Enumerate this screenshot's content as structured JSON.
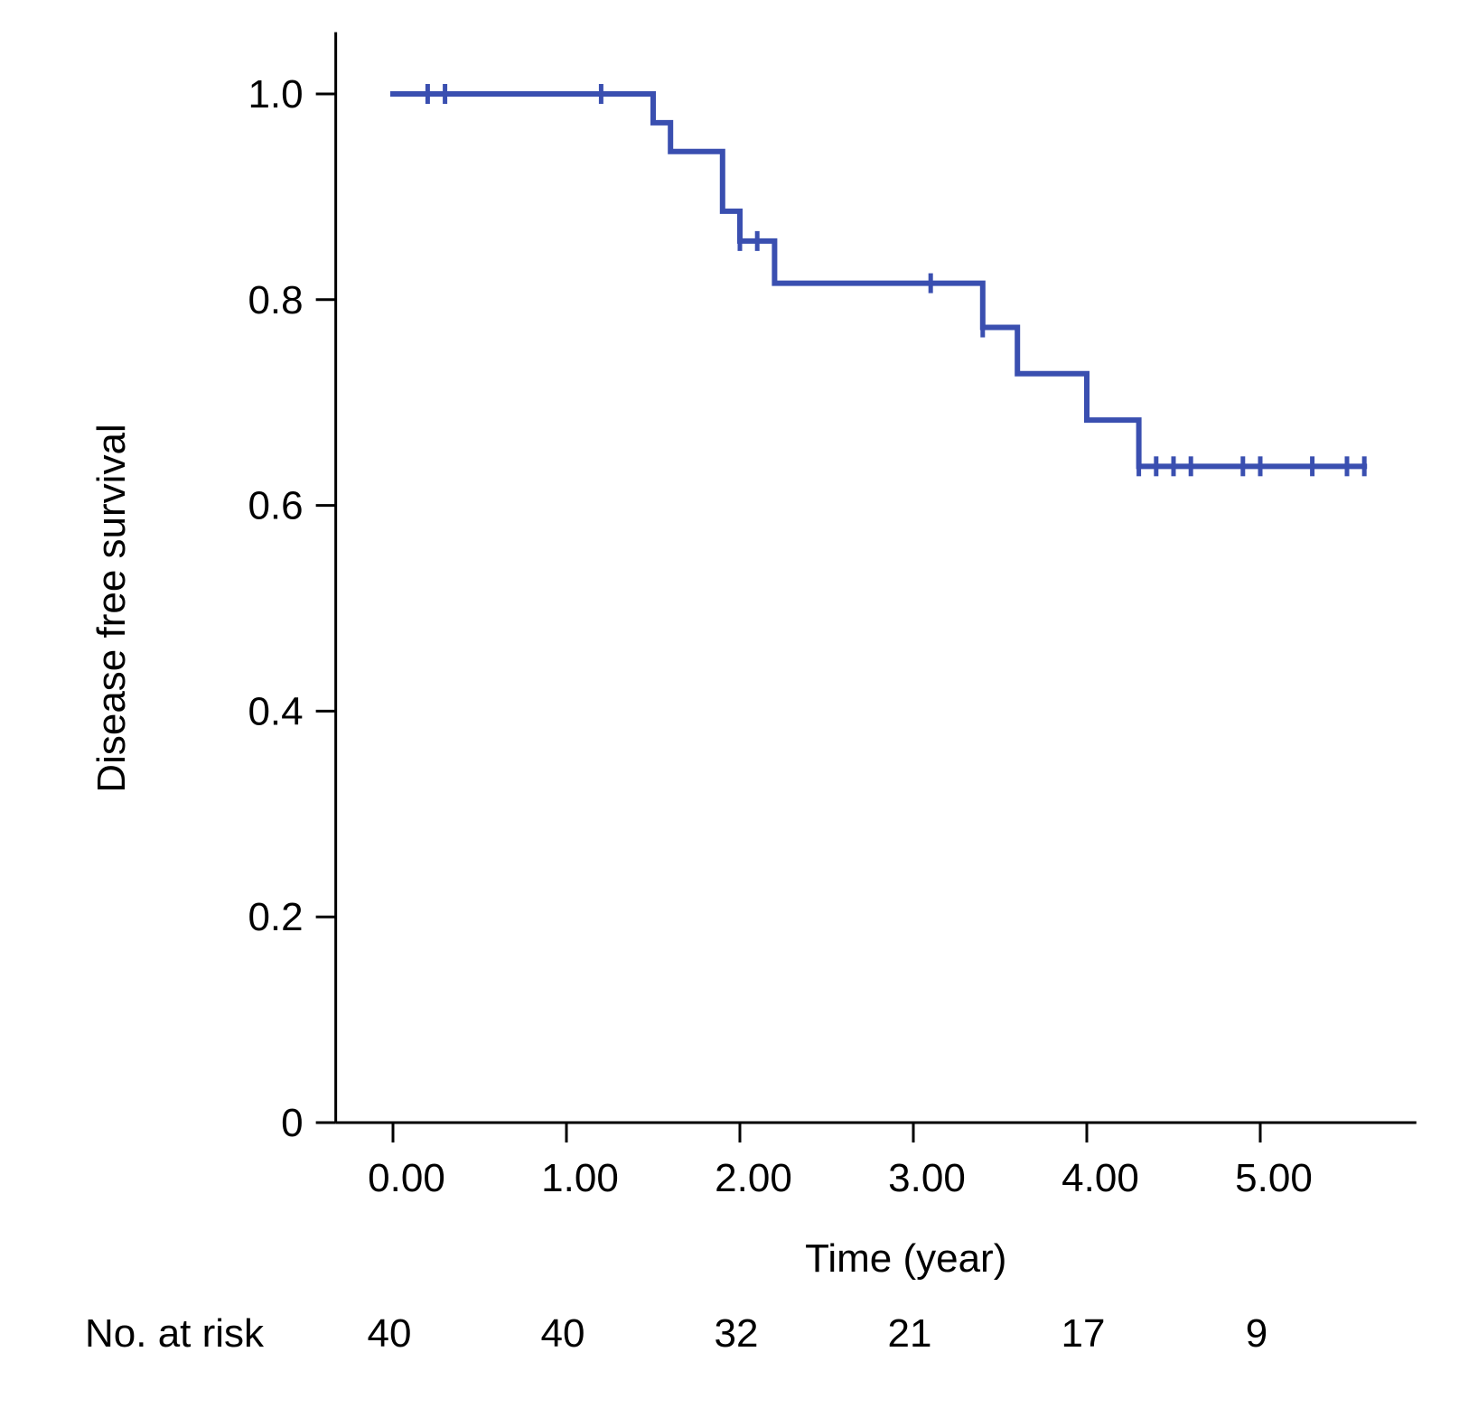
{
  "chart_data": {
    "type": "line",
    "subtype": "kaplan-meier-step",
    "xlabel": "Time (year)",
    "ylabel": "Disease free survival",
    "xlim": [
      -0.33,
      5.9
    ],
    "ylim": [
      0,
      1.06
    ],
    "grid": false,
    "legend": "none",
    "x_ticks": [
      {
        "value": 0,
        "label": "0.00"
      },
      {
        "value": 1,
        "label": "1.00"
      },
      {
        "value": 2,
        "label": "2.00"
      },
      {
        "value": 3,
        "label": "3.00"
      },
      {
        "value": 4,
        "label": "4.00"
      },
      {
        "value": 5,
        "label": "5.00"
      }
    ],
    "y_ticks": [
      {
        "value": 0,
        "label": "0"
      },
      {
        "value": 0.2,
        "label": "0.2"
      },
      {
        "value": 0.4,
        "label": "0.4"
      },
      {
        "value": 0.6,
        "label": "0.6"
      },
      {
        "value": 0.8,
        "label": "0.8"
      },
      {
        "value": 1.0,
        "label": "1.0"
      }
    ],
    "series": [
      {
        "color": "#3a4fb0",
        "steps": [
          {
            "x": 0.0,
            "y": 1.0
          },
          {
            "x": 1.5,
            "y": 0.972
          },
          {
            "x": 1.6,
            "y": 0.944
          },
          {
            "x": 1.9,
            "y": 0.886
          },
          {
            "x": 2.0,
            "y": 0.857
          },
          {
            "x": 2.2,
            "y": 0.816
          },
          {
            "x": 3.4,
            "y": 0.773
          },
          {
            "x": 3.6,
            "y": 0.728
          },
          {
            "x": 4.0,
            "y": 0.683
          },
          {
            "x": 4.3,
            "y": 0.638
          }
        ],
        "end_x": 5.6,
        "censored": [
          {
            "x": 0.2,
            "y": 1.0
          },
          {
            "x": 0.3,
            "y": 1.0
          },
          {
            "x": 1.2,
            "y": 1.0
          },
          {
            "x": 2.0,
            "y": 0.857
          },
          {
            "x": 2.1,
            "y": 0.857
          },
          {
            "x": 3.1,
            "y": 0.816
          },
          {
            "x": 3.4,
            "y": 0.773
          },
          {
            "x": 4.3,
            "y": 0.638
          },
          {
            "x": 4.4,
            "y": 0.638
          },
          {
            "x": 4.5,
            "y": 0.638
          },
          {
            "x": 4.6,
            "y": 0.638
          },
          {
            "x": 4.9,
            "y": 0.638
          },
          {
            "x": 5.0,
            "y": 0.638
          },
          {
            "x": 5.3,
            "y": 0.638
          },
          {
            "x": 5.5,
            "y": 0.638
          },
          {
            "x": 5.6,
            "y": 0.638
          }
        ]
      }
    ],
    "risk_table": {
      "label": "No. at risk",
      "times": [
        0,
        1,
        2,
        3,
        4,
        5
      ],
      "counts": [
        "40",
        "40",
        "32",
        "21",
        "17",
        "9"
      ]
    }
  }
}
